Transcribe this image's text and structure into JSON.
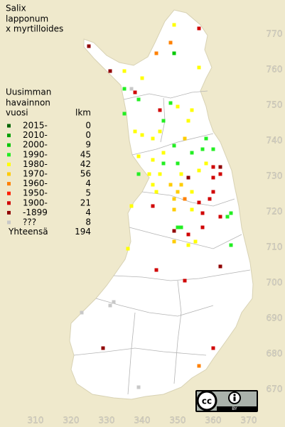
{
  "title": [
    "Salix",
    "lapponum",
    "x myrtilloides"
  ],
  "legend": {
    "heading": [
      "Uusimman",
      "havainnon",
      "vuosi"
    ],
    "count_heading": "lkm",
    "rows": [
      {
        "label": "2015-",
        "count": 0,
        "color": "#006400"
      },
      {
        "label": "2010-",
        "count": 0,
        "color": "#00a000"
      },
      {
        "label": "2000-",
        "count": 9,
        "color": "#00c800"
      },
      {
        "label": "1990-",
        "count": 45,
        "color": "#22ee22"
      },
      {
        "label": "1980-",
        "count": 42,
        "color": "#ffff00"
      },
      {
        "label": "1970-",
        "count": 56,
        "color": "#ffcc00"
      },
      {
        "label": "1960-",
        "count": 4,
        "color": "#ff8000"
      },
      {
        "label": "1950-",
        "count": 5,
        "color": "#ff2000"
      },
      {
        "label": "1900-",
        "count": 21,
        "color": "#d00000"
      },
      {
        "label": "-1899",
        "count": 4,
        "color": "#900000"
      },
      {
        "label": "???",
        "count": 8,
        "color": "#c8c8c8"
      }
    ],
    "total_label": "Yhteensä",
    "total": 194
  },
  "grid": {
    "x_labels": [
      310,
      320,
      330,
      340,
      350,
      360,
      370
    ],
    "y_labels": [
      670,
      680,
      690,
      700,
      710,
      720,
      730,
      740,
      750,
      760,
      770
    ]
  },
  "points": [
    [
      325,
      767,
      9
    ],
    [
      349,
      773,
      4
    ],
    [
      356,
      772,
      8
    ],
    [
      348,
      768,
      6
    ],
    [
      344,
      765,
      6
    ],
    [
      331,
      760,
      9
    ],
    [
      335,
      760,
      4
    ],
    [
      349,
      765,
      2
    ],
    [
      356,
      761,
      4
    ],
    [
      340,
      758,
      4
    ],
    [
      335,
      755,
      3
    ],
    [
      337,
      755,
      10
    ],
    [
      338,
      754,
      8
    ],
    [
      339,
      752,
      3
    ],
    [
      348,
      751,
      3
    ],
    [
      350,
      750,
      4
    ],
    [
      354,
      749,
      4
    ],
    [
      345,
      749,
      8
    ],
    [
      335,
      748,
      3
    ],
    [
      346,
      746,
      3
    ],
    [
      353,
      746,
      4
    ],
    [
      338,
      743,
      4
    ],
    [
      340,
      742,
      4
    ],
    [
      343,
      741,
      4
    ],
    [
      345,
      743,
      4
    ],
    [
      352,
      741,
      5
    ],
    [
      358,
      741,
      3
    ],
    [
      360,
      738,
      3
    ],
    [
      357,
      738,
      3
    ],
    [
      349,
      739,
      3
    ],
    [
      354,
      737,
      3
    ],
    [
      346,
      737,
      4
    ],
    [
      339,
      736,
      4
    ],
    [
      343,
      735,
      4
    ],
    [
      346,
      734,
      3
    ],
    [
      350,
      734,
      3
    ],
    [
      358,
      734,
      4
    ],
    [
      360,
      733,
      8
    ],
    [
      362,
      733,
      9
    ],
    [
      339,
      731,
      3
    ],
    [
      342,
      731,
      4
    ],
    [
      345,
      731,
      4
    ],
    [
      351,
      731,
      4
    ],
    [
      353,
      730,
      9
    ],
    [
      356,
      732,
      4
    ],
    [
      360,
      730,
      8
    ],
    [
      362,
      731,
      8
    ],
    [
      343,
      728,
      4
    ],
    [
      348,
      728,
      5
    ],
    [
      351,
      728,
      5
    ],
    [
      350,
      726,
      5
    ],
    [
      354,
      726,
      4
    ],
    [
      344,
      726,
      4
    ],
    [
      360,
      726,
      8
    ],
    [
      349,
      724,
      5
    ],
    [
      352,
      724,
      6
    ],
    [
      356,
      723,
      8
    ],
    [
      359,
      724,
      8
    ],
    [
      337,
      722,
      4
    ],
    [
      343,
      722,
      8
    ],
    [
      349,
      721,
      5
    ],
    [
      354,
      721,
      4
    ],
    [
      357,
      720,
      8
    ],
    [
      365,
      720,
      3
    ],
    [
      364,
      719,
      3
    ],
    [
      362,
      719,
      8
    ],
    [
      350,
      716,
      3
    ],
    [
      351,
      716,
      3
    ],
    [
      349,
      715,
      9
    ],
    [
      353,
      714,
      8
    ],
    [
      357,
      716,
      8
    ],
    [
      349,
      712,
      5
    ],
    [
      355,
      712,
      4
    ],
    [
      336,
      710,
      4
    ],
    [
      365,
      711,
      3
    ],
    [
      353,
      711,
      4
    ],
    [
      362,
      705,
      9
    ],
    [
      344,
      704,
      8
    ],
    [
      352,
      701,
      8
    ],
    [
      332,
      695,
      10
    ],
    [
      331,
      694,
      10
    ],
    [
      323,
      692,
      10
    ],
    [
      329,
      682,
      9
    ],
    [
      360,
      682,
      8
    ],
    [
      356,
      677,
      6
    ],
    [
      339,
      671,
      10
    ]
  ],
  "license": {
    "cc": "cc",
    "by": "BY"
  }
}
